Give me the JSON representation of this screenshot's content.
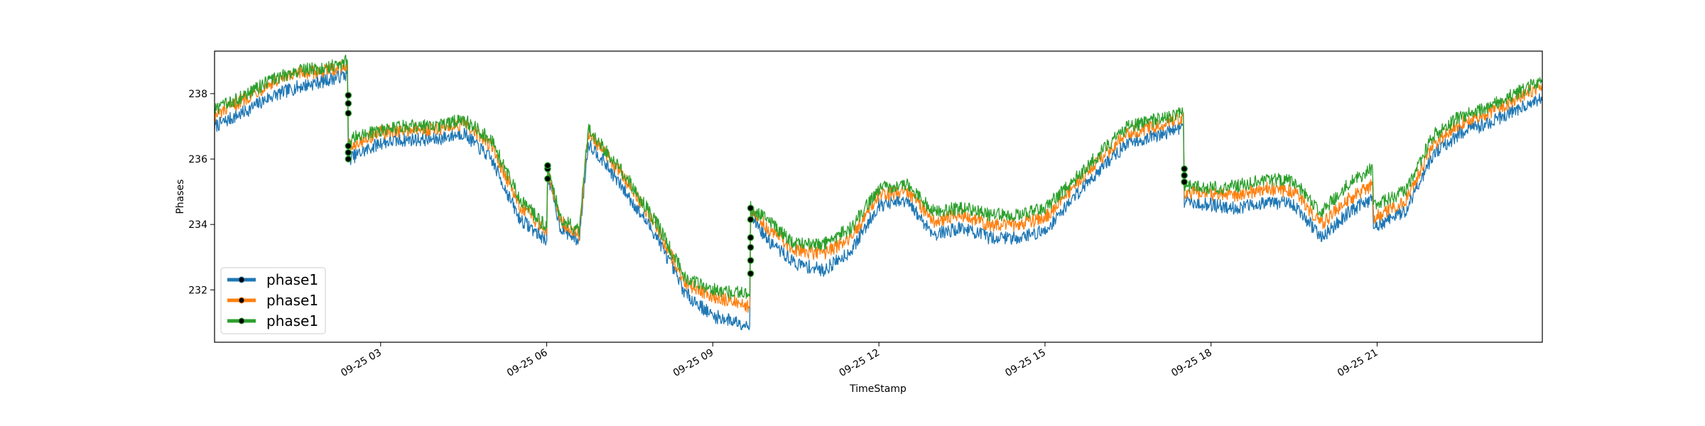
{
  "chart_data": {
    "type": "line",
    "title": "",
    "xlabel": "TimeStamp",
    "ylabel": "Phases",
    "x_range": [
      "09-25 00:00",
      "09-25 23:59"
    ],
    "ylim": [
      230.4,
      239.3
    ],
    "grid": false,
    "legend_position": "lower-left",
    "x_ticks": [
      "09-25 03",
      "09-25 06",
      "09-25 09",
      "09-25 12",
      "09-25 15",
      "09-25 18",
      "09-25 21"
    ],
    "y_ticks": [
      232,
      234,
      236,
      238
    ],
    "series": [
      {
        "name": "phase1",
        "color": "#1f77b4",
        "points": [
          [
            "09-25 00:00",
            237.0
          ],
          [
            "09-25 00:30",
            237.4
          ],
          [
            "09-25 01:00",
            237.9
          ],
          [
            "09-25 01:30",
            238.2
          ],
          [
            "09-25 02:00",
            238.4
          ],
          [
            "09-25 02:24",
            238.6
          ],
          [
            "09-25 02:25",
            236.0
          ],
          [
            "09-25 03:00",
            236.5
          ],
          [
            "09-25 03:30",
            236.6
          ],
          [
            "09-25 04:00",
            236.6
          ],
          [
            "09-25 04:30",
            236.8
          ],
          [
            "09-25 05:00",
            236.0
          ],
          [
            "09-25 05:30",
            234.2
          ],
          [
            "09-25 06:00",
            233.5
          ],
          [
            "09-25 06:01",
            235.5
          ],
          [
            "09-25 06:15",
            233.9
          ],
          [
            "09-25 06:35",
            233.5
          ],
          [
            "09-25 06:45",
            236.5
          ],
          [
            "09-25 07:00",
            236.0
          ],
          [
            "09-25 07:30",
            234.8
          ],
          [
            "09-25 08:00",
            233.6
          ],
          [
            "09-25 08:30",
            231.9
          ],
          [
            "09-25 09:00",
            231.2
          ],
          [
            "09-25 09:30",
            231.0
          ],
          [
            "09-25 09:40",
            230.9
          ],
          [
            "09-25 09:41",
            234.3
          ],
          [
            "09-25 10:00",
            233.5
          ],
          [
            "09-25 10:30",
            232.8
          ],
          [
            "09-25 11:00",
            232.6
          ],
          [
            "09-25 11:30",
            233.2
          ],
          [
            "09-25 12:00",
            234.6
          ],
          [
            "09-25 12:30",
            234.7
          ],
          [
            "09-25 13:00",
            233.7
          ],
          [
            "09-25 13:30",
            233.9
          ],
          [
            "09-25 14:00",
            233.6
          ],
          [
            "09-25 14:30",
            233.6
          ],
          [
            "09-25 15:00",
            233.8
          ],
          [
            "09-25 15:30",
            234.8
          ],
          [
            "09-25 16:00",
            235.7
          ],
          [
            "09-25 16:30",
            236.5
          ],
          [
            "09-25 17:00",
            236.7
          ],
          [
            "09-25 17:30",
            237.0
          ],
          [
            "09-25 17:31",
            234.7
          ],
          [
            "09-25 18:00",
            234.6
          ],
          [
            "09-25 18:30",
            234.5
          ],
          [
            "09-25 19:00",
            234.7
          ],
          [
            "09-25 19:30",
            234.6
          ],
          [
            "09-25 20:00",
            233.6
          ],
          [
            "09-25 20:30",
            234.4
          ],
          [
            "09-25 20:55",
            234.8
          ],
          [
            "09-25 20:56",
            233.9
          ],
          [
            "09-25 21:30",
            234.4
          ],
          [
            "09-25 22:00",
            236.1
          ],
          [
            "09-25 22:30",
            236.8
          ],
          [
            "09-25 23:00",
            237.1
          ],
          [
            "09-25 23:30",
            237.5
          ],
          [
            "09-25 23:59",
            237.9
          ]
        ]
      },
      {
        "name": "phase1",
        "color": "#ff7f0e",
        "points": [
          [
            "09-25 00:00",
            237.3
          ],
          [
            "09-25 00:30",
            237.8
          ],
          [
            "09-25 01:00",
            238.3
          ],
          [
            "09-25 01:30",
            238.6
          ],
          [
            "09-25 02:00",
            238.7
          ],
          [
            "09-25 02:24",
            238.9
          ],
          [
            "09-25 02:25",
            236.4
          ],
          [
            "09-25 03:00",
            236.8
          ],
          [
            "09-25 03:30",
            236.9
          ],
          [
            "09-25 04:00",
            236.9
          ],
          [
            "09-25 04:30",
            237.1
          ],
          [
            "09-25 05:00",
            236.4
          ],
          [
            "09-25 05:30",
            234.6
          ],
          [
            "09-25 06:00",
            233.8
          ],
          [
            "09-25 06:01",
            235.7
          ],
          [
            "09-25 06:15",
            234.1
          ],
          [
            "09-25 06:35",
            233.7
          ],
          [
            "09-25 06:45",
            236.8
          ],
          [
            "09-25 07:00",
            236.3
          ],
          [
            "09-25 07:30",
            235.2
          ],
          [
            "09-25 08:00",
            233.9
          ],
          [
            "09-25 08:30",
            232.2
          ],
          [
            "09-25 09:00",
            231.8
          ],
          [
            "09-25 09:30",
            231.6
          ],
          [
            "09-25 09:40",
            231.5
          ],
          [
            "09-25 09:41",
            234.4
          ],
          [
            "09-25 10:00",
            233.9
          ],
          [
            "09-25 10:30",
            233.2
          ],
          [
            "09-25 11:00",
            233.1
          ],
          [
            "09-25 11:30",
            233.6
          ],
          [
            "09-25 12:00",
            234.9
          ],
          [
            "09-25 12:30",
            235.0
          ],
          [
            "09-25 13:00",
            234.1
          ],
          [
            "09-25 13:30",
            234.3
          ],
          [
            "09-25 14:00",
            234.0
          ],
          [
            "09-25 14:30",
            234.0
          ],
          [
            "09-25 15:00",
            234.2
          ],
          [
            "09-25 15:30",
            235.1
          ],
          [
            "09-25 16:00",
            236.0
          ],
          [
            "09-25 16:30",
            236.8
          ],
          [
            "09-25 17:00",
            237.0
          ],
          [
            "09-25 17:30",
            237.3
          ],
          [
            "09-25 17:31",
            235.0
          ],
          [
            "09-25 18:00",
            234.9
          ],
          [
            "09-25 18:30",
            234.9
          ],
          [
            "09-25 19:00",
            235.1
          ],
          [
            "09-25 19:30",
            235.0
          ],
          [
            "09-25 20:00",
            234.0
          ],
          [
            "09-25 20:30",
            234.8
          ],
          [
            "09-25 20:55",
            235.2
          ],
          [
            "09-25 20:56",
            234.2
          ],
          [
            "09-25 21:30",
            234.7
          ],
          [
            "09-25 22:00",
            236.4
          ],
          [
            "09-25 22:30",
            237.1
          ],
          [
            "09-25 23:00",
            237.4
          ],
          [
            "09-25 23:30",
            237.8
          ],
          [
            "09-25 23:59",
            238.3
          ]
        ]
      },
      {
        "name": "phase1",
        "color": "#2ca02c",
        "points": [
          [
            "09-25 00:00",
            237.5
          ],
          [
            "09-25 00:30",
            237.9
          ],
          [
            "09-25 01:00",
            238.4
          ],
          [
            "09-25 01:30",
            238.7
          ],
          [
            "09-25 02:00",
            238.8
          ],
          [
            "09-25 02:24",
            239.0
          ],
          [
            "09-25 02:25",
            236.6
          ],
          [
            "09-25 03:00",
            236.9
          ],
          [
            "09-25 03:30",
            237.0
          ],
          [
            "09-25 04:00",
            237.0
          ],
          [
            "09-25 04:30",
            237.2
          ],
          [
            "09-25 05:00",
            236.6
          ],
          [
            "09-25 05:30",
            234.8
          ],
          [
            "09-25 06:00",
            233.9
          ],
          [
            "09-25 06:01",
            235.8
          ],
          [
            "09-25 06:15",
            234.2
          ],
          [
            "09-25 06:35",
            233.8
          ],
          [
            "09-25 06:45",
            236.9
          ],
          [
            "09-25 07:00",
            236.4
          ],
          [
            "09-25 07:30",
            235.3
          ],
          [
            "09-25 08:00",
            234.0
          ],
          [
            "09-25 08:30",
            232.4
          ],
          [
            "09-25 09:00",
            232.0
          ],
          [
            "09-25 09:30",
            231.9
          ],
          [
            "09-25 09:40",
            231.8
          ],
          [
            "09-25 09:41",
            234.5
          ],
          [
            "09-25 10:00",
            234.1
          ],
          [
            "09-25 10:30",
            233.4
          ],
          [
            "09-25 11:00",
            233.4
          ],
          [
            "09-25 11:30",
            233.9
          ],
          [
            "09-25 12:00",
            235.1
          ],
          [
            "09-25 12:30",
            235.2
          ],
          [
            "09-25 13:00",
            234.4
          ],
          [
            "09-25 13:30",
            234.5
          ],
          [
            "09-25 14:00",
            234.3
          ],
          [
            "09-25 14:30",
            234.3
          ],
          [
            "09-25 15:00",
            234.5
          ],
          [
            "09-25 15:30",
            235.3
          ],
          [
            "09-25 16:00",
            236.2
          ],
          [
            "09-25 16:30",
            237.0
          ],
          [
            "09-25 17:00",
            237.2
          ],
          [
            "09-25 17:30",
            237.4
          ],
          [
            "09-25 17:31",
            235.2
          ],
          [
            "09-25 18:00",
            235.1
          ],
          [
            "09-25 18:30",
            235.2
          ],
          [
            "09-25 19:00",
            235.4
          ],
          [
            "09-25 19:30",
            235.3
          ],
          [
            "09-25 20:00",
            234.4
          ],
          [
            "09-25 20:30",
            235.3
          ],
          [
            "09-25 20:55",
            235.7
          ],
          [
            "09-25 20:56",
            234.6
          ],
          [
            "09-25 21:30",
            235.0
          ],
          [
            "09-25 22:00",
            236.7
          ],
          [
            "09-25 22:30",
            237.3
          ],
          [
            "09-25 23:00",
            237.6
          ],
          [
            "09-25 23:30",
            238.0
          ],
          [
            "09-25 23:59",
            238.4
          ]
        ]
      }
    ],
    "markers": [
      [
        "09-25 02:25",
        236.0
      ],
      [
        "09-25 02:25",
        236.2
      ],
      [
        "09-25 02:25",
        236.4
      ],
      [
        "09-25 02:25",
        237.4
      ],
      [
        "09-25 02:25",
        237.7
      ],
      [
        "09-25 02:25",
        237.95
      ],
      [
        "09-25 06:01",
        235.4
      ],
      [
        "09-25 06:01",
        235.7
      ],
      [
        "09-25 06:01",
        235.8
      ],
      [
        "09-25 09:41",
        232.5
      ],
      [
        "09-25 09:41",
        232.9
      ],
      [
        "09-25 09:41",
        233.3
      ],
      [
        "09-25 09:41",
        233.6
      ],
      [
        "09-25 09:41",
        234.15
      ],
      [
        "09-25 09:41",
        234.5
      ],
      [
        "09-25 17:31",
        235.3
      ],
      [
        "09-25 17:31",
        235.5
      ],
      [
        "09-25 17:31",
        235.7
      ]
    ]
  }
}
